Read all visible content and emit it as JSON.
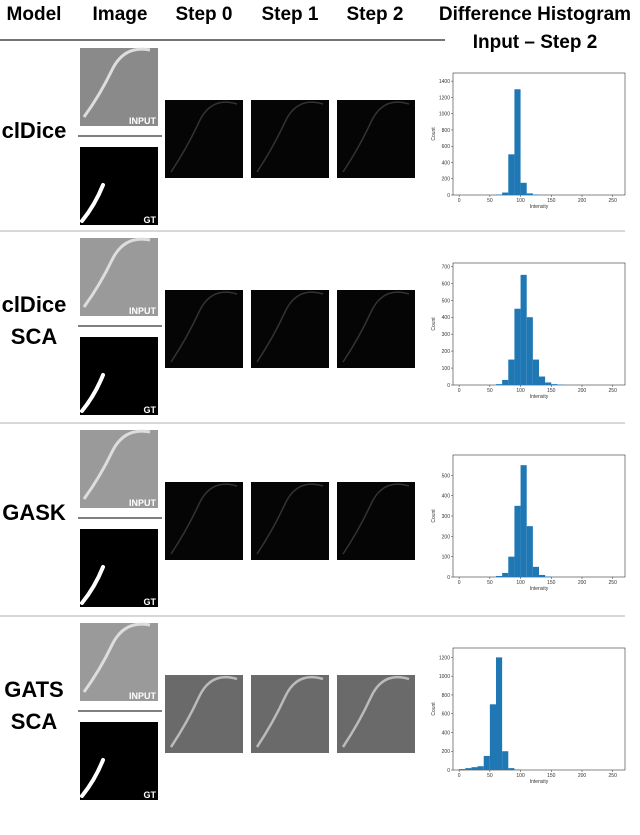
{
  "header": {
    "model": "Model",
    "image": "Image",
    "step0": "Step 0",
    "step1": "Step 1",
    "step2": "Step 2",
    "hist_title": "Difference Histogram",
    "hist_subtitle": "Input – Step 2"
  },
  "rows": [
    {
      "model": [
        "clDice"
      ],
      "input_label": "INPUT",
      "gt_label": "GT",
      "histogram": {
        "type": "bar",
        "xlabel": "Intensity",
        "ylabel": "Count",
        "bins": [
          0,
          10,
          20,
          30,
          40,
          50,
          60,
          70,
          80,
          90,
          100,
          110,
          120,
          130,
          140,
          150,
          160,
          170,
          180,
          190,
          200,
          210,
          220,
          230,
          240,
          250,
          260
        ],
        "counts": [
          0,
          0,
          0,
          0,
          0,
          0,
          5,
          30,
          500,
          1300,
          150,
          20,
          5,
          0,
          0,
          0,
          0,
          0,
          0,
          0,
          0,
          0,
          0,
          0,
          0,
          0
        ],
        "xlim": [
          -10,
          270
        ],
        "ylim": [
          0,
          1500
        ],
        "xticks": [
          0,
          50,
          100,
          150,
          200,
          250
        ],
        "yticks": [
          0,
          200,
          400,
          600,
          800,
          1000,
          1200,
          1400
        ],
        "color": "#1f77b4"
      }
    },
    {
      "model": [
        "clDice",
        "SCA"
      ],
      "input_label": "INPUT",
      "gt_label": "GT",
      "histogram": {
        "type": "bar",
        "xlabel": "Intensity",
        "ylabel": "Count",
        "bins": [
          0,
          10,
          20,
          30,
          40,
          50,
          60,
          70,
          80,
          90,
          100,
          110,
          120,
          130,
          140,
          150,
          160,
          170,
          180,
          190,
          200,
          210,
          220,
          230,
          240,
          250,
          260
        ],
        "counts": [
          0,
          0,
          0,
          0,
          0,
          0,
          5,
          30,
          150,
          450,
          650,
          400,
          150,
          50,
          15,
          5,
          2,
          0,
          0,
          0,
          0,
          0,
          0,
          0,
          0,
          0
        ],
        "xlim": [
          -10,
          270
        ],
        "ylim": [
          0,
          720
        ],
        "xticks": [
          0,
          50,
          100,
          150,
          200,
          250
        ],
        "yticks": [
          0,
          100,
          200,
          300,
          400,
          500,
          600,
          700
        ],
        "color": "#1f77b4"
      }
    },
    {
      "model": [
        "GASK"
      ],
      "input_label": "INPUT",
      "gt_label": "GT",
      "histogram": {
        "type": "bar",
        "xlabel": "Intensity",
        "ylabel": "Count",
        "bins": [
          0,
          10,
          20,
          30,
          40,
          50,
          60,
          70,
          80,
          90,
          100,
          110,
          120,
          130,
          140,
          150,
          160,
          170,
          180,
          190,
          200,
          210,
          220,
          230,
          240,
          250,
          260
        ],
        "counts": [
          0,
          0,
          0,
          0,
          0,
          0,
          5,
          20,
          100,
          350,
          550,
          250,
          50,
          10,
          2,
          0,
          0,
          0,
          0,
          0,
          0,
          0,
          0,
          0,
          0,
          0
        ],
        "xlim": [
          -10,
          270
        ],
        "ylim": [
          0,
          600
        ],
        "xticks": [
          0,
          50,
          100,
          150,
          200,
          250
        ],
        "yticks": [
          0,
          100,
          200,
          300,
          400,
          500
        ],
        "color": "#1f77b4"
      }
    },
    {
      "model": [
        "GATS",
        "SCA"
      ],
      "input_label": "INPUT",
      "gt_label": "GT",
      "histogram": {
        "type": "bar",
        "xlabel": "Intensity",
        "ylabel": "Count",
        "bins": [
          0,
          10,
          20,
          30,
          40,
          50,
          60,
          70,
          80,
          90,
          100,
          110,
          120,
          130,
          140,
          150,
          160,
          170,
          180,
          190,
          200,
          210,
          220,
          230,
          240,
          250,
          260
        ],
        "counts": [
          10,
          20,
          30,
          40,
          150,
          700,
          1200,
          200,
          20,
          5,
          0,
          0,
          0,
          0,
          0,
          0,
          0,
          0,
          0,
          0,
          0,
          0,
          0,
          0,
          0,
          0
        ],
        "xlim": [
          -10,
          270
        ],
        "ylim": [
          0,
          1300
        ],
        "xticks": [
          0,
          50,
          100,
          150,
          200,
          250
        ],
        "yticks": [
          0,
          200,
          400,
          600,
          800,
          1000,
          1200
        ],
        "color": "#1f77b4"
      }
    }
  ]
}
